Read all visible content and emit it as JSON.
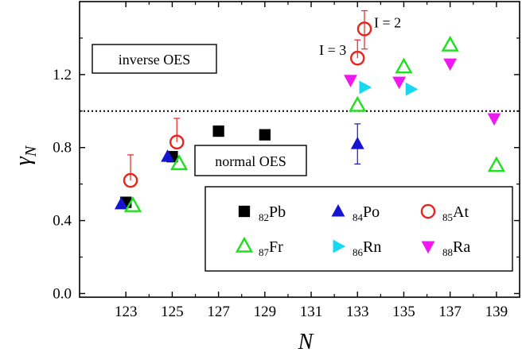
{
  "chart_data": {
    "type": "scatter",
    "xlabel": "N",
    "ylabel": "γ",
    "ylabel_sub": "N",
    "xlim": [
      121,
      140
    ],
    "ylim": [
      -0.02,
      1.6
    ],
    "xticks": [
      "123",
      "125",
      "127",
      "129",
      "131",
      "133",
      "135",
      "137",
      "139"
    ],
    "yticks": [
      "0.0",
      "0.4",
      "0.8",
      "1.2"
    ],
    "reference_line": {
      "y": 1.0,
      "style": "dotted"
    },
    "region_labels": {
      "upper": "inverse OES",
      "lower": "normal OES"
    },
    "annotations": [
      {
        "text": "I = 3",
        "x": 133.0,
        "y": 1.29
      },
      {
        "text": "I = 2",
        "x": 133.3,
        "y": 1.45
      }
    ],
    "legend_position": "lower-right",
    "series": [
      {
        "name": "Pb",
        "prefix": "82",
        "marker": "square",
        "color": "#000000",
        "points": [
          {
            "x": 123,
            "y": 0.5
          },
          {
            "x": 125,
            "y": 0.75
          },
          {
            "x": 127,
            "y": 0.89
          },
          {
            "x": 129,
            "y": 0.87
          }
        ]
      },
      {
        "name": "Po",
        "prefix": "84",
        "marker": "triangle-up",
        "color": "#1515d0",
        "points": [
          {
            "x": 122.8,
            "y": 0.49
          },
          {
            "x": 124.8,
            "y": 0.75
          },
          {
            "x": 133,
            "y": 0.82,
            "err_up": 0.11,
            "err_down": 0.11
          }
        ]
      },
      {
        "name": "At",
        "prefix": "85",
        "marker": "circle-open",
        "color": "#e8241e",
        "points": [
          {
            "x": 123.2,
            "y": 0.62,
            "err_up": 0.14
          },
          {
            "x": 125.2,
            "y": 0.83,
            "err_up": 0.13
          },
          {
            "x": 133.0,
            "y": 1.29,
            "err_up": 0.1
          },
          {
            "x": 133.3,
            "y": 1.45,
            "err_up": 0.1,
            "err_down": 0.11
          }
        ]
      },
      {
        "name": "Fr",
        "prefix": "87",
        "marker": "triangle-up-open",
        "color": "#1fe01f",
        "points": [
          {
            "x": 123.3,
            "y": 0.48
          },
          {
            "x": 125.3,
            "y": 0.71
          },
          {
            "x": 133.0,
            "y": 1.03
          },
          {
            "x": 135.0,
            "y": 1.24
          },
          {
            "x": 137.0,
            "y": 1.36
          },
          {
            "x": 139.0,
            "y": 0.7
          }
        ]
      },
      {
        "name": "Rn",
        "prefix": "86",
        "marker": "triangle-right",
        "color": "#18d8f0",
        "points": [
          {
            "x": 133.3,
            "y": 1.13
          },
          {
            "x": 135.3,
            "y": 1.12
          }
        ]
      },
      {
        "name": "Ra",
        "prefix": "88",
        "marker": "triangle-down",
        "color": "#f018f0",
        "points": [
          {
            "x": 132.7,
            "y": 1.17
          },
          {
            "x": 134.8,
            "y": 1.16
          },
          {
            "x": 137.0,
            "y": 1.26
          },
          {
            "x": 138.9,
            "y": 0.96
          }
        ]
      }
    ]
  }
}
